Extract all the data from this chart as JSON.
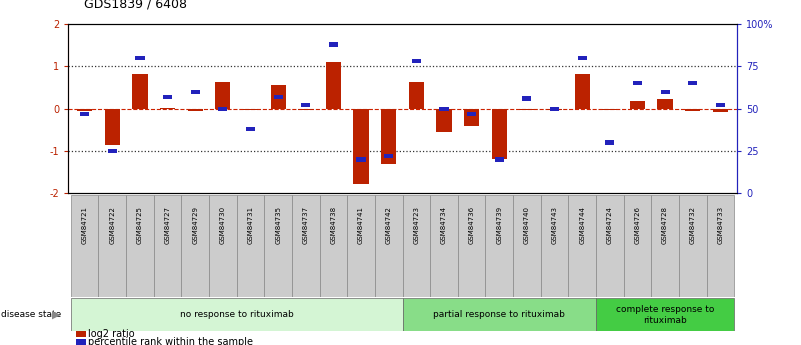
{
  "title": "GDS1839 / 6408",
  "samples": [
    "GSM84721",
    "GSM84722",
    "GSM84725",
    "GSM84727",
    "GSM84729",
    "GSM84730",
    "GSM84731",
    "GSM84735",
    "GSM84737",
    "GSM84738",
    "GSM84741",
    "GSM84742",
    "GSM84723",
    "GSM84734",
    "GSM84736",
    "GSM84739",
    "GSM84740",
    "GSM84743",
    "GSM84744",
    "GSM84724",
    "GSM84726",
    "GSM84728",
    "GSM84732",
    "GSM84733"
  ],
  "log2_ratio": [
    -0.05,
    -0.85,
    0.82,
    0.02,
    -0.05,
    0.62,
    -0.03,
    0.55,
    -0.02,
    1.1,
    -1.78,
    -1.32,
    0.64,
    -0.55,
    -0.42,
    -1.18,
    -0.03,
    -0.03,
    0.82,
    -0.04,
    0.18,
    0.22,
    -0.05,
    -0.08
  ],
  "percentile_rank": [
    47,
    25,
    80,
    57,
    60,
    50,
    38,
    57,
    52,
    88,
    20,
    22,
    78,
    50,
    47,
    20,
    56,
    50,
    80,
    30,
    65,
    60,
    65,
    52
  ],
  "groups": [
    {
      "label": "no response to rituximab",
      "start": 0,
      "end": 12,
      "color": "#d4f5d4"
    },
    {
      "label": "partial response to rituximab",
      "start": 12,
      "end": 19,
      "color": "#88dd88"
    },
    {
      "label": "complete response to\nrituximab",
      "start": 19,
      "end": 24,
      "color": "#44cc44"
    }
  ],
  "ylim_left": [
    -2,
    2
  ],
  "ylim_right": [
    0,
    100
  ],
  "bar_color": "#bb2200",
  "dot_color": "#2222bb",
  "bg_color": "#ffffff",
  "zero_line_color": "#cc2200",
  "dotted_line_color": "#333333",
  "sample_box_color": "#cccccc",
  "sample_box_edge": "#888888"
}
